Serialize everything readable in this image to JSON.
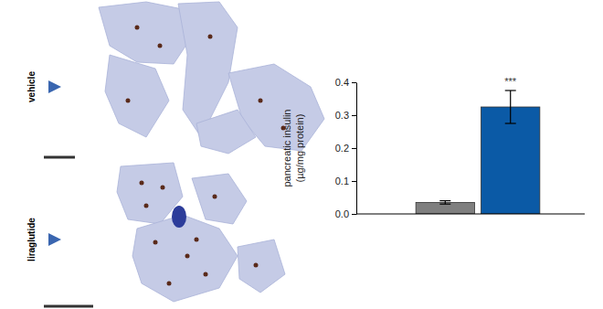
{
  "chart_data": {
    "type": "bar",
    "y_label": "pancreatic insulin (µg/mg protein)",
    "categories": [
      null,
      null
    ],
    "values": [
      0.035,
      0.325
    ],
    "errors": [
      0.005,
      0.05
    ],
    "colors": [
      "#7f7f7f",
      "#0b5aa6"
    ],
    "ylim": [
      0,
      0.4
    ],
    "yticks": [
      {
        "value": 0,
        "label": "0.0"
      },
      {
        "value": 0.1,
        "label": "0.1"
      },
      {
        "value": 0.2,
        "label": "0.2"
      },
      {
        "value": 0.3,
        "label": "0.3"
      },
      {
        "value": 0.4,
        "label": "0.4"
      }
    ],
    "tick_labels": "y",
    "annotations": [
      "vehicle",
      "liraglutide",
      "***"
    ]
  }
}
